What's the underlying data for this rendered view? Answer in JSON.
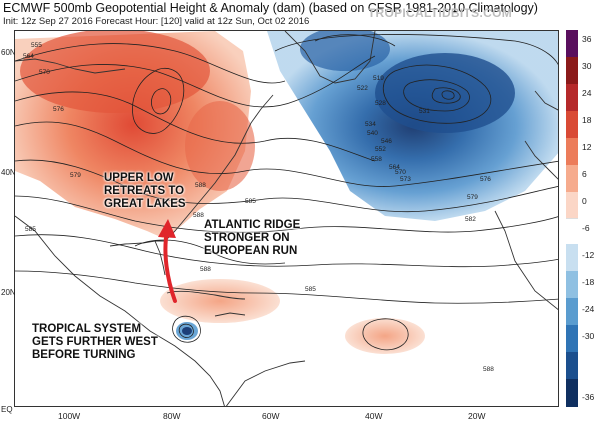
{
  "header": {
    "title": "ECMWF 500mb Geopotential Height & Anomaly (dam) (based on CFSR 1981-2010 Climatology)",
    "subtitle": "Init: 12z Sep 27 2016   Forecast Hour: [120]   valid at 12z Sun, Oct 02 2016",
    "brand": "TROPICALTIDBITS.COM"
  },
  "axes": {
    "lat_labels": [
      "60N",
      "40N",
      "20N",
      "EQ"
    ],
    "lon_labels": [
      "100W",
      "80W",
      "60W",
      "40W",
      "20W"
    ]
  },
  "colorbar": {
    "ticks": [
      "36",
      "30",
      "24",
      "18",
      "12",
      "6",
      "0",
      "-6",
      "-12",
      "-18",
      "-24",
      "-30",
      "-36"
    ],
    "colors": [
      "#5a0f5e",
      "#8b1a1a",
      "#b5292a",
      "#d94a35",
      "#ec7c5a",
      "#f6ab8d",
      "#fbd6c6",
      "#ffffff",
      "#c8dff0",
      "#8fc0e2",
      "#5a9ccf",
      "#2f74b5",
      "#1b4f8e",
      "#0f2f60"
    ]
  },
  "contour_labels": [
    "555",
    "564",
    "570",
    "576",
    "579",
    "585",
    "588",
    "519",
    "522",
    "528",
    "531",
    "534",
    "540",
    "546",
    "552",
    "558",
    "564",
    "570",
    "573",
    "576",
    "579",
    "582",
    "588",
    "585",
    "588",
    "585",
    "588"
  ],
  "annotations": {
    "upper_low": [
      "UPPER LOW",
      "RETREATS TO",
      "GREAT LAKES"
    ],
    "atlantic_ridge": [
      "ATLANTIC RIDGE",
      "STRONGER ON",
      "EUROPEAN RUN"
    ],
    "tropical": [
      "TROPICAL SYSTEM",
      "GETS FURTHER WEST",
      "BEFORE TURNING"
    ]
  },
  "colors": {
    "arrow": "#e0252b",
    "positive": "#e85c3c",
    "negative": "#2c6fb4"
  }
}
